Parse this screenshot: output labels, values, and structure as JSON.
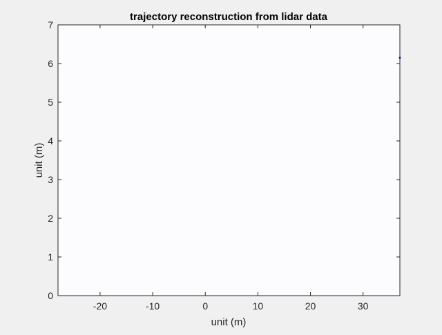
{
  "chart_data": {
    "type": "scatter",
    "title": "trajectory reconstruction from lidar data",
    "xlabel": "unit (m)",
    "ylabel": "unit (m)",
    "xlim": [
      -28,
      37
    ],
    "ylim": [
      0,
      7
    ],
    "xticks": [
      -20,
      -10,
      0,
      10,
      20,
      30
    ],
    "yticks": [
      0,
      1,
      2,
      3,
      4,
      5,
      6,
      7
    ],
    "grid": false,
    "series": [
      {
        "color": "#0000ff",
        "points": [
          [
            37,
            6.15
          ]
        ]
      }
    ]
  },
  "colors": {
    "figure_background": "#f0f0f0",
    "axes_background": "#fcfbfd",
    "axis_line": "#262626",
    "marker": "#0000ff"
  }
}
